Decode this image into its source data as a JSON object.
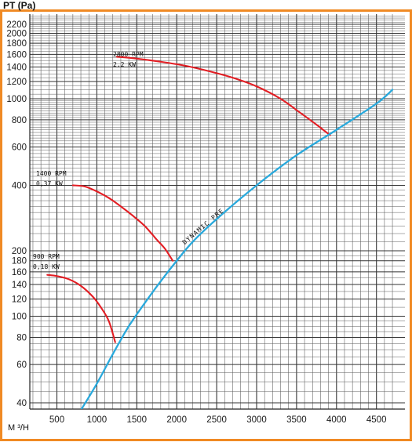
{
  "chart_data": {
    "type": "line",
    "title": "",
    "ylabel": "PT (Pa)",
    "xlabel": "M ³/H",
    "x_scale": "linear",
    "y_scale": "log",
    "xlim": [
      0,
      4700
    ],
    "ylim": [
      37,
      2500
    ],
    "grid": true,
    "x_ticks": [
      500,
      1000,
      1500,
      2000,
      2500,
      3000,
      3500,
      4000,
      4500
    ],
    "y_ticks": [
      40,
      60,
      80,
      100,
      120,
      140,
      160,
      180,
      200,
      400,
      600,
      800,
      1000,
      1200,
      1400,
      1600,
      1800,
      2000,
      2200
    ],
    "series": [
      {
        "label_lines": [
          "2800 RPM",
          "2,2 KW"
        ],
        "color": "#e31e24",
        "x": [
          1250,
          1500,
          1800,
          2100,
          2400,
          2700,
          3000,
          3300,
          3550,
          3750,
          3920
        ],
        "y": [
          1560,
          1530,
          1480,
          1420,
          1340,
          1250,
          1140,
          1000,
          860,
          760,
          680
        ]
      },
      {
        "label_lines": [
          "1400 RPM",
          "0,37  KW"
        ],
        "color": "#e31e24",
        "x": [
          700,
          850,
          1000,
          1150,
          1300,
          1450,
          1600,
          1750,
          1850,
          1950
        ],
        "y": [
          400,
          395,
          375,
          350,
          320,
          290,
          260,
          225,
          205,
          180
        ]
      },
      {
        "label_lines": [
          "900 RPM",
          "0,18  KW"
        ],
        "color": "#e31e24",
        "x": [
          380,
          500,
          650,
          800,
          950,
          1050,
          1150,
          1230
        ],
        "y": [
          155,
          153,
          148,
          138,
          123,
          110,
          95,
          76
        ]
      },
      {
        "name": "DYNAMIC PRESSURE",
        "color": "#29a9dc",
        "x": [
          800,
          1000,
          1200,
          1400,
          1600,
          1800,
          2000,
          2200,
          2500,
          3000,
          3500,
          4000,
          4500,
          4700
        ],
        "y": [
          37,
          49,
          67,
          90,
          115,
          145,
          180,
          220,
          280,
          400,
          550,
          720,
          950,
          1100
        ]
      }
    ]
  }
}
